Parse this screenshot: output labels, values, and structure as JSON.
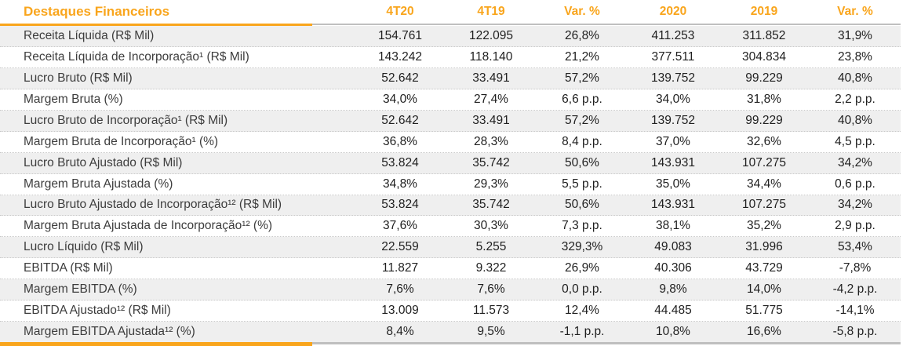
{
  "table": {
    "title": "Destaques Financeiros",
    "columns": [
      "4T20",
      "4T19",
      "Var. %",
      "2020",
      "2019",
      "Var. %"
    ],
    "rows": [
      {
        "label": "Receita Líquida (R$ Mil)",
        "values": [
          "154.761",
          "122.095",
          "26,8%",
          "411.253",
          "311.852",
          "31,9%"
        ]
      },
      {
        "label": "Receita Líquida de Incorporação¹ (R$ Mil)",
        "values": [
          "143.242",
          "118.140",
          "21,2%",
          "377.511",
          "304.834",
          "23,8%"
        ]
      },
      {
        "label": "Lucro Bruto (R$ Mil)",
        "values": [
          "52.642",
          "33.491",
          "57,2%",
          "139.752",
          "99.229",
          "40,8%"
        ]
      },
      {
        "label": "Margem Bruta (%)",
        "values": [
          "34,0%",
          "27,4%",
          "6,6 p.p.",
          "34,0%",
          "31,8%",
          "2,2 p.p."
        ]
      },
      {
        "label": "Lucro Bruto de Incorporação¹ (R$ Mil)",
        "values": [
          "52.642",
          "33.491",
          "57,2%",
          "139.752",
          "99.229",
          "40,8%"
        ]
      },
      {
        "label": "Margem Bruta de Incorporação¹ (%)",
        "values": [
          "36,8%",
          "28,3%",
          "8,4 p.p.",
          "37,0%",
          "32,6%",
          "4,5 p.p."
        ]
      },
      {
        "label": "Lucro Bruto Ajustado (R$ Mil)",
        "values": [
          "53.824",
          "35.742",
          "50,6%",
          "143.931",
          "107.275",
          "34,2%"
        ]
      },
      {
        "label": "Margem Bruta Ajustada (%)",
        "values": [
          "34,8%",
          "29,3%",
          "5,5 p.p.",
          "35,0%",
          "34,4%",
          "0,6 p.p."
        ]
      },
      {
        "label": "Lucro Bruto Ajustado de Incorporação¹² (R$ Mil)",
        "values": [
          "53.824",
          "35.742",
          "50,6%",
          "143.931",
          "107.275",
          "34,2%"
        ]
      },
      {
        "label": "Margem Bruta Ajustada de Incorporação¹² (%)",
        "values": [
          "37,6%",
          "30,3%",
          "7,3 p.p.",
          "38,1%",
          "35,2%",
          "2,9 p.p."
        ]
      },
      {
        "label": "Lucro Líquido (R$ Mil)",
        "values": [
          "22.559",
          "5.255",
          "329,3%",
          "49.083",
          "31.996",
          "53,4%"
        ]
      },
      {
        "label": "EBITDA (R$ Mil)",
        "values": [
          "11.827",
          "9.322",
          "26,9%",
          "40.306",
          "43.729",
          "-7,8%"
        ]
      },
      {
        "label": "Margem EBITDA (%)",
        "values": [
          "7,6%",
          "7,6%",
          "0,0 p.p.",
          "9,8%",
          "14,0%",
          "-4,2 p.p."
        ]
      },
      {
        "label": "EBITDA Ajustado¹² (R$ Mil)",
        "values": [
          "13.009",
          "11.573",
          "12,4%",
          "44.485",
          "51.775",
          "-14,1%"
        ]
      },
      {
        "label": "Margem EBITDA Ajustada¹² (%)",
        "values": [
          "8,4%",
          "9,5%",
          "-1,1 p.p.",
          "10,8%",
          "16,6%",
          "-5,8 p.p."
        ]
      }
    ]
  },
  "colors": {
    "accent_orange": "#F9A51C",
    "row_stripe": "#EFEFEF",
    "divider_gray": "#BFBFBF",
    "label_text": "#3d3d3d",
    "value_text": "#1f1f1f"
  }
}
